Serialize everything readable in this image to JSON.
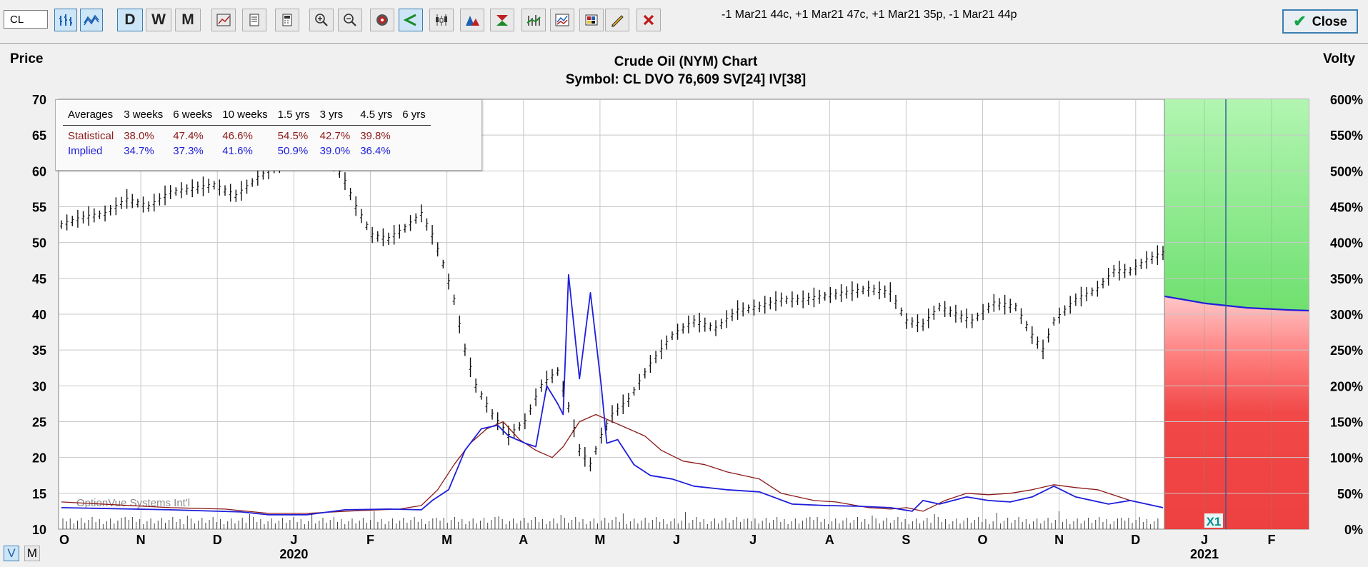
{
  "toolbar": {
    "symbol_value": "CL",
    "letters": [
      "D",
      "W",
      "M"
    ],
    "order_text": "-1 Mar21 44c, +1 Mar21 47c, +1 Mar21 35p, -1 Mar21 44p",
    "close_label": "Close"
  },
  "view_toggle": {
    "v_label": "V",
    "m_label": "M"
  },
  "stats": {
    "headers": [
      "Averages",
      "3 weeks",
      "6 weeks",
      "10 weeks",
      "1.5 yrs",
      "3 yrs",
      "4.5 yrs",
      "6 yrs"
    ],
    "statistical_label": "Statistical",
    "statistical": [
      "38.0%",
      "47.4%",
      "46.6%",
      "54.5%",
      "42.7%",
      "39.8%",
      ""
    ],
    "implied_label": "Implied",
    "implied": [
      "34.7%",
      "37.3%",
      "41.6%",
      "50.9%",
      "39.0%",
      "36.4%",
      ""
    ]
  },
  "chart_data": {
    "type": "line",
    "title": "Crude Oil (NYM) Chart",
    "subtitle": "Symbol: CL  DVO 76,609  SV[24]  IV[38]",
    "ylabel": "Price",
    "ylabel_right": "Volty",
    "watermark": "OptionVue Systems Int'l",
    "marker_label": "X1",
    "ylim": [
      10,
      70
    ],
    "y_ticks": [
      70,
      65,
      60,
      55,
      50,
      45,
      40,
      35,
      30,
      25,
      20,
      15,
      10
    ],
    "y2lim": [
      0,
      600
    ],
    "y2_ticks": [
      "600%",
      "550%",
      "500%",
      "450%",
      "400%",
      "350%",
      "300%",
      "250%",
      "200%",
      "150%",
      "100%",
      "50%",
      "0%"
    ],
    "x_month_labels": [
      "O",
      "N",
      "D",
      "J",
      "F",
      "M",
      "A",
      "M",
      "J",
      "J",
      "A",
      "S",
      "O",
      "N",
      "D",
      "J",
      "F"
    ],
    "x_year_labels": [
      "2020",
      "2021"
    ],
    "grid": true,
    "price_series": [
      [
        0,
        52.5
      ],
      [
        4,
        53.5
      ],
      [
        8,
        54
      ],
      [
        12,
        56
      ],
      [
        16,
        55
      ],
      [
        20,
        57
      ],
      [
        24,
        57.5
      ],
      [
        28,
        58
      ],
      [
        32,
        56.5
      ],
      [
        36,
        59
      ],
      [
        40,
        61
      ],
      [
        44,
        63
      ],
      [
        47,
        62
      ],
      [
        50,
        61
      ],
      [
        52,
        58.5
      ],
      [
        54,
        55
      ],
      [
        57,
        51
      ],
      [
        60,
        50.5
      ],
      [
        63,
        52
      ],
      [
        66,
        54
      ],
      [
        68,
        51
      ],
      [
        70,
        47
      ],
      [
        72,
        42
      ],
      [
        74,
        35
      ],
      [
        76,
        30
      ],
      [
        79,
        26
      ],
      [
        82,
        23
      ],
      [
        85,
        25
      ],
      [
        88,
        30
      ],
      [
        91,
        32
      ],
      [
        93,
        27
      ],
      [
        95,
        21
      ],
      [
        97,
        19
      ],
      [
        99,
        23
      ],
      [
        101,
        26
      ],
      [
        104,
        28
      ],
      [
        108,
        33
      ],
      [
        112,
        37
      ],
      [
        116,
        39
      ],
      [
        120,
        38
      ],
      [
        124,
        40.5
      ],
      [
        128,
        41
      ],
      [
        132,
        42
      ],
      [
        136,
        42
      ],
      [
        140,
        42.5
      ],
      [
        144,
        43
      ],
      [
        148,
        43.5
      ],
      [
        152,
        43
      ],
      [
        155,
        39
      ],
      [
        158,
        38.5
      ],
      [
        161,
        41
      ],
      [
        164,
        40
      ],
      [
        167,
        39
      ],
      [
        171,
        41.5
      ],
      [
        175,
        41
      ],
      [
        178,
        37
      ],
      [
        180,
        35
      ],
      [
        182,
        39
      ],
      [
        186,
        42
      ],
      [
        190,
        43.5
      ],
      [
        193,
        46
      ],
      [
        196,
        46
      ],
      [
        199,
        47.5
      ],
      [
        202,
        48.5
      ]
    ],
    "implied_vol_series": [
      [
        0,
        30
      ],
      [
        20,
        27
      ],
      [
        33,
        24
      ],
      [
        38,
        20
      ],
      [
        45,
        20
      ],
      [
        52,
        27
      ],
      [
        60,
        28
      ],
      [
        66,
        27
      ],
      [
        68,
        40
      ],
      [
        71,
        55
      ],
      [
        74,
        110
      ],
      [
        77,
        140
      ],
      [
        80,
        145
      ],
      [
        82,
        130
      ],
      [
        85,
        120
      ],
      [
        87,
        115
      ],
      [
        89,
        200
      ],
      [
        91,
        175
      ],
      [
        92,
        160
      ],
      [
        93,
        355
      ],
      [
        95,
        210
      ],
      [
        97,
        330
      ],
      [
        99,
        200
      ],
      [
        100,
        120
      ],
      [
        102,
        125
      ],
      [
        105,
        90
      ],
      [
        108,
        75
      ],
      [
        112,
        70
      ],
      [
        116,
        60
      ],
      [
        122,
        55
      ],
      [
        128,
        52
      ],
      [
        134,
        35
      ],
      [
        140,
        33
      ],
      [
        146,
        32
      ],
      [
        152,
        30
      ],
      [
        156,
        25
      ],
      [
        158,
        40
      ],
      [
        161,
        35
      ],
      [
        166,
        45
      ],
      [
        170,
        40
      ],
      [
        174,
        38
      ],
      [
        178,
        45
      ],
      [
        182,
        60
      ],
      [
        186,
        45
      ],
      [
        192,
        35
      ],
      [
        196,
        40
      ],
      [
        202,
        30
      ]
    ],
    "statistical_vol_series": [
      [
        0,
        38
      ],
      [
        20,
        30
      ],
      [
        30,
        28
      ],
      [
        38,
        22
      ],
      [
        45,
        22
      ],
      [
        55,
        26
      ],
      [
        62,
        28
      ],
      [
        66,
        33
      ],
      [
        69,
        55
      ],
      [
        72,
        90
      ],
      [
        75,
        120
      ],
      [
        78,
        140
      ],
      [
        81,
        150
      ],
      [
        84,
        125
      ],
      [
        87,
        110
      ],
      [
        90,
        100
      ],
      [
        92,
        115
      ],
      [
        95,
        150
      ],
      [
        98,
        160
      ],
      [
        101,
        150
      ],
      [
        104,
        140
      ],
      [
        107,
        130
      ],
      [
        110,
        110
      ],
      [
        114,
        95
      ],
      [
        118,
        90
      ],
      [
        122,
        80
      ],
      [
        128,
        70
      ],
      [
        132,
        50
      ],
      [
        138,
        40
      ],
      [
        142,
        38
      ],
      [
        148,
        30
      ],
      [
        152,
        28
      ],
      [
        155,
        30
      ],
      [
        158,
        25
      ],
      [
        162,
        40
      ],
      [
        166,
        50
      ],
      [
        170,
        48
      ],
      [
        174,
        50
      ],
      [
        178,
        55
      ],
      [
        182,
        62
      ],
      [
        186,
        58
      ],
      [
        190,
        55
      ],
      [
        196,
        40
      ],
      [
        202,
        30
      ]
    ],
    "projected_vol_series": [
      [
        0,
        325
      ],
      [
        8,
        315
      ],
      [
        16,
        309
      ],
      [
        24,
        306
      ],
      [
        28,
        305
      ]
    ]
  }
}
